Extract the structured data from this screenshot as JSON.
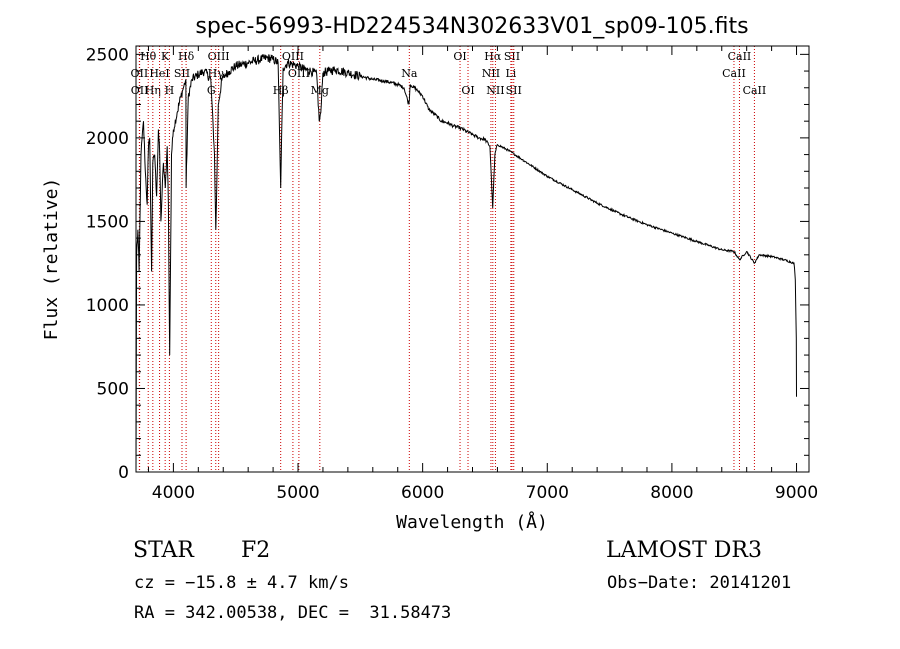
{
  "chart_data": {
    "type": "line",
    "title": "spec-56993-HD224534N302633V01_sp09-105.fits",
    "xlabel": "Wavelength (Å)",
    "ylabel": "Flux (relative)",
    "xlim": [
      3700,
      9100
    ],
    "ylim": [
      0,
      2550
    ],
    "xticks": [
      4000,
      5000,
      6000,
      7000,
      8000,
      9000
    ],
    "yticks": [
      0,
      500,
      1000,
      1500,
      2000,
      2500
    ],
    "grid": false,
    "series": [
      {
        "name": "flux",
        "x": [
          3700,
          3705,
          3715,
          3725,
          3740,
          3760,
          3775,
          3790,
          3800,
          3810,
          3825,
          3835,
          3850,
          3865,
          3880,
          3890,
          3900,
          3920,
          3935,
          3950,
          3960,
          3970,
          3985,
          4000,
          4030,
          4060,
          4080,
          4100,
          4102,
          4120,
          4150,
          4200,
          4250,
          4300,
          4330,
          4340,
          4345,
          4360,
          4390,
          4420,
          4450,
          4500,
          4550,
          4600,
          4650,
          4700,
          4750,
          4800,
          4840,
          4861,
          4880,
          4920,
          4960,
          5000,
          5050,
          5100,
          5150,
          5170,
          5183,
          5200,
          5250,
          5300,
          5400,
          5500,
          5600,
          5700,
          5800,
          5850,
          5890,
          5900,
          5950,
          6000,
          6050,
          6100,
          6150,
          6200,
          6250,
          6300,
          6350,
          6400,
          6450,
          6500,
          6540,
          6562,
          6580,
          6600,
          6700,
          6800,
          7000,
          7200,
          7400,
          7600,
          7800,
          8000,
          8200,
          8400,
          8498,
          8542,
          8600,
          8662,
          8700,
          8800,
          8900,
          8980,
          8990,
          8998,
          9000
        ],
        "y": [
          0,
          1300,
          1450,
          1200,
          1900,
          2100,
          1800,
          1600,
          1950,
          2000,
          1200,
          1850,
          1900,
          1650,
          2050,
          1900,
          1500,
          1850,
          1700,
          1950,
          1600,
          700,
          1900,
          2050,
          2150,
          2250,
          2300,
          2350,
          1700,
          2250,
          2350,
          2380,
          2400,
          2350,
          1900,
          1450,
          1600,
          2200,
          2350,
          2380,
          2400,
          2430,
          2440,
          2450,
          2460,
          2470,
          2480,
          2470,
          2450,
          1700,
          2420,
          2450,
          2440,
          2430,
          2410,
          2400,
          2380,
          2100,
          2150,
          2390,
          2400,
          2410,
          2390,
          2370,
          2350,
          2340,
          2320,
          2300,
          2200,
          2320,
          2290,
          2250,
          2170,
          2140,
          2100,
          2090,
          2070,
          2060,
          2040,
          2020,
          2000,
          1990,
          1950,
          1580,
          1900,
          1960,
          1920,
          1870,
          1770,
          1690,
          1610,
          1540,
          1480,
          1430,
          1380,
          1330,
          1320,
          1270,
          1320,
          1250,
          1300,
          1290,
          1270,
          1250,
          1150,
          800,
          450
        ]
      }
    ],
    "lines": [
      {
        "label": "Hθ",
        "x": 3798,
        "row": 0
      },
      {
        "label": "OII",
        "x": 3727,
        "row": 1
      },
      {
        "label": "OII",
        "x": 3729,
        "row": 2
      },
      {
        "label": "Hη",
        "x": 3835,
        "row": 2
      },
      {
        "label": "HeI",
        "x": 3889,
        "row": 1
      },
      {
        "label": "K",
        "x": 3934,
        "row": 0
      },
      {
        "label": "H",
        "x": 3968,
        "row": 2
      },
      {
        "label": "SII",
        "x": 4069,
        "row": 1
      },
      {
        "label": "Hδ",
        "x": 4102,
        "row": 0
      },
      {
        "label": "OIII",
        "x": 4363,
        "row": 0
      },
      {
        "label": "Hγ",
        "x": 4340,
        "row": 1
      },
      {
        "label": "G",
        "x": 4304,
        "row": 2
      },
      {
        "label": "Hβ",
        "x": 4861,
        "row": 2
      },
      {
        "label": "OIII",
        "x": 4959,
        "row": 0
      },
      {
        "label": "OIII",
        "x": 5007,
        "row": 1
      },
      {
        "label": "Mg",
        "x": 5175,
        "row": 2
      },
      {
        "label": "Na",
        "x": 5893,
        "row": 1
      },
      {
        "label": "OI",
        "x": 6300,
        "row": 0
      },
      {
        "label": "OI",
        "x": 6364,
        "row": 2
      },
      {
        "label": "Hα",
        "x": 6563,
        "row": 0
      },
      {
        "label": "NII",
        "x": 6548,
        "row": 1
      },
      {
        "label": "NII",
        "x": 6584,
        "row": 2
      },
      {
        "label": "SII",
        "x": 6717,
        "row": 0
      },
      {
        "label": "Li",
        "x": 6708,
        "row": 1
      },
      {
        "label": "SII",
        "x": 6731,
        "row": 2
      },
      {
        "label": "CaII",
        "x": 8542,
        "row": 0
      },
      {
        "label": "CaII",
        "x": 8498,
        "row": 1
      },
      {
        "label": "CaII",
        "x": 8662,
        "row": 2
      }
    ]
  },
  "info": {
    "object_class": "STAR",
    "subclass": "F2",
    "survey": "LAMOST DR3",
    "cz": "cz = −15.8 ± 4.7 km/s",
    "obs_date": "Obs−Date: 20141201",
    "coords": "RA = 342.00538, DEC =  31.58473"
  }
}
